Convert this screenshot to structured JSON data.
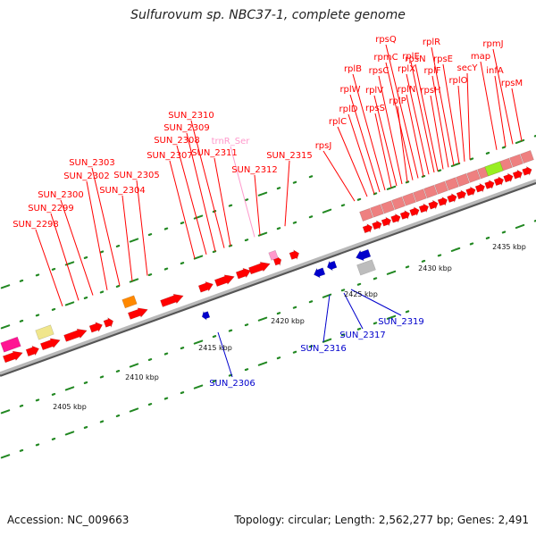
{
  "title": "Sulfurovum sp. NBC37-1, complete genome",
  "footer": {
    "accession_label": "Accession: NC_009663",
    "summary": "Topology: circular; Length: 2,562,277 bp; Genes: 2,491"
  },
  "colors": {
    "gene_red": "#ff0000",
    "label_red": "#dd0000",
    "label_blue": "#0000cc",
    "trna_pink": "#ff99cc",
    "rrna_orange": "#ff8800",
    "pale_yellow": "#f0e68c",
    "magenta": "#ff1493",
    "lime": "#99ee22",
    "tick_green": "#228822",
    "backbone": "#888888"
  },
  "scale_labels": [
    "2405 kbp",
    "2410 kbp",
    "2415 kbp",
    "2420 kbp",
    "2425 kbp",
    "2430 kbp",
    "2435 kbp"
  ],
  "forward_labels": [
    "SUN_2298",
    "SUN_2299",
    "SUN_2300",
    "SUN_2302",
    "SUN_2303",
    "SUN_2304",
    "SUN_2305",
    "SUN_2307",
    "SUN_2308",
    "SUN_2309",
    "SUN_2310",
    "SUN_2311",
    "trnR_Ser",
    "SUN_2312",
    "SUN_2315",
    "rpsJ",
    "rplC",
    "rplD",
    "rplW",
    "rplB",
    "rpsS",
    "rplV",
    "rpsC",
    "rplP",
    "rpmC",
    "rpsQ",
    "rplN",
    "rplX",
    "rplE",
    "rpsN",
    "rpsH",
    "rplF",
    "rplR",
    "rpsE",
    "rplO",
    "secY",
    "map",
    "infA",
    "rpmJ",
    "rpsM"
  ],
  "reverse_labels": [
    "SUN_2306",
    "SUN_2316",
    "SUN_2317",
    "SUN_2319"
  ]
}
